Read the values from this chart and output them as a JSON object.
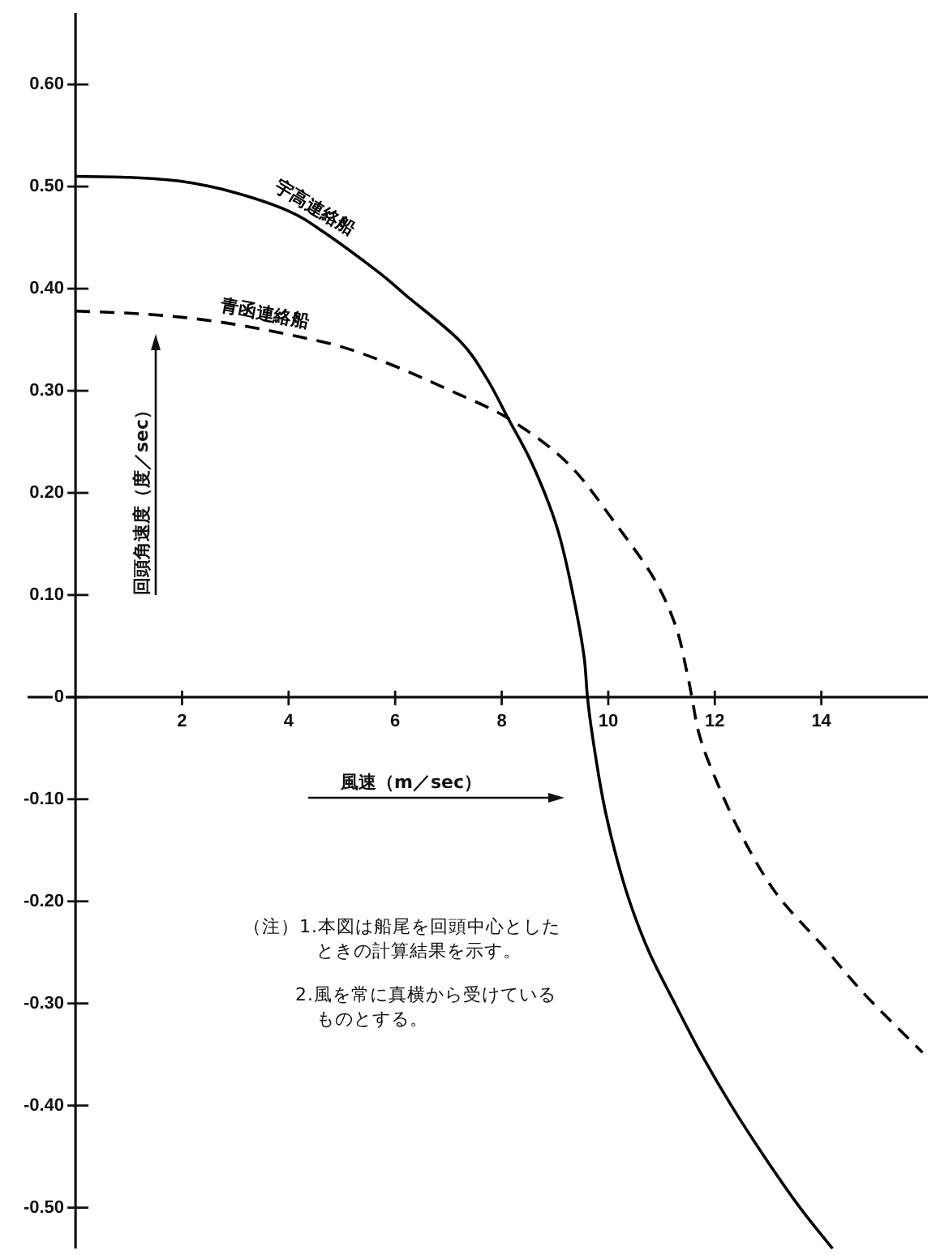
{
  "chart_data": {
    "type": "line",
    "xlabel": "風速（m／sec）",
    "ylabel": "回頭角速度（度／sec）",
    "annotations": [
      "（注）1.本図は船尾を回頭中心としたときの計算結果を示す。",
      "2.風を常に真横から受けているものとする。"
    ],
    "xlim": [
      -0.9,
      16.0
    ],
    "ylim": [
      -0.54,
      0.67
    ],
    "xticks": [
      2,
      4,
      6,
      8,
      10,
      12,
      14
    ],
    "yticks": [
      {
        "value": 0.6,
        "label": "0.60"
      },
      {
        "value": 0.5,
        "label": "0.50"
      },
      {
        "value": 0.4,
        "label": "0.40"
      },
      {
        "value": 0.3,
        "label": "0.30"
      },
      {
        "value": 0.2,
        "label": "0.20"
      },
      {
        "value": 0.1,
        "label": "0.10"
      },
      0,
      {
        "value": -0.1,
        "label": "-0.10"
      },
      {
        "value": -0.2,
        "label": "-0.20"
      },
      {
        "value": -0.3,
        "label": "-0.30"
      },
      {
        "value": -0.4,
        "label": "-0.40"
      },
      {
        "value": -0.5,
        "label": "-0.50"
      }
    ],
    "series": [
      {
        "name": "宇高連絡船",
        "color": "#000000",
        "line_style": "solid",
        "x": [
          0,
          1,
          2,
          3,
          4,
          4.67,
          5.69,
          6.19,
          7.21,
          7.72,
          8.12,
          8.53,
          8.88,
          9.1,
          9.34,
          9.54,
          9.61,
          9.7,
          9.9,
          10.12,
          10.4,
          10.77,
          11.25,
          11.75,
          12.31,
          12.93,
          13.6,
          14.21
        ],
        "values": [
          0.51,
          0.509,
          0.505,
          0.494,
          0.476,
          0.455,
          0.416,
          0.394,
          0.349,
          0.312,
          0.273,
          0.233,
          0.19,
          0.155,
          0.1,
          0.042,
          0,
          -0.037,
          -0.1,
          -0.15,
          -0.2,
          -0.25,
          -0.3,
          -0.35,
          -0.4,
          -0.45,
          -0.5,
          -0.54
        ]
      },
      {
        "name": "青函連絡船",
        "color": "#000000",
        "line_style": "dashed",
        "x": [
          0,
          1,
          2,
          3,
          4,
          5,
          6,
          7,
          8.12,
          9.24,
          10.15,
          10.86,
          11.27,
          11.47,
          11.57,
          11.7,
          11.95,
          12.48,
          13.15,
          14.05,
          14.83,
          15.9
        ],
        "values": [
          0.378,
          0.376,
          0.372,
          0.365,
          0.355,
          0.343,
          0.324,
          0.301,
          0.273,
          0.229,
          0.169,
          0.116,
          0.069,
          0.026,
          0,
          -0.035,
          -0.072,
          -0.133,
          -0.192,
          -0.245,
          -0.292,
          -0.348
        ]
      }
    ]
  }
}
